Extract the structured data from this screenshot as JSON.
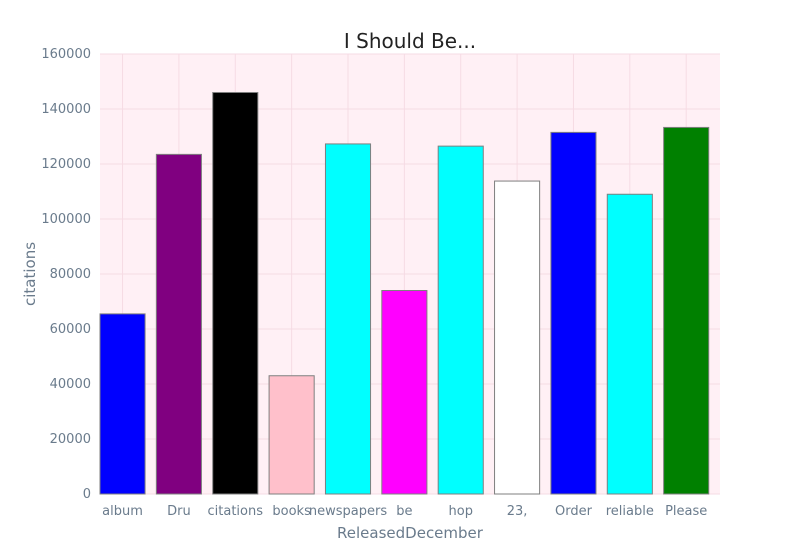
{
  "chart_data": {
    "type": "bar",
    "title": "I Should Be...",
    "xlabel": "ReleasedDecember",
    "ylabel": "citations",
    "categories": [
      "album",
      "Dru",
      "citations",
      "books",
      "newspapers",
      "be",
      "hop",
      "23,",
      "Order",
      "reliable",
      "Please"
    ],
    "values": [
      65500,
      123500,
      146000,
      43000,
      127300,
      74000,
      126500,
      113800,
      131500,
      109000,
      133300
    ],
    "bar_colors": [
      "#0000ff",
      "#800080",
      "#000000",
      "#ffc0cb",
      "#00ffff",
      "#ff00ff",
      "#00ffff",
      "#ffffff",
      "#0000ff",
      "#00ffff",
      "#008000"
    ],
    "ylim": [
      0,
      160000
    ],
    "yticks": [
      "0",
      "20000",
      "40000",
      "60000",
      "80000",
      "100000",
      "120000",
      "140000",
      "160000"
    ],
    "grid": true,
    "plot_background": "#fff0f5",
    "grid_color": "#f6dbe4",
    "bar_edge_color": "#7f7f7f"
  }
}
